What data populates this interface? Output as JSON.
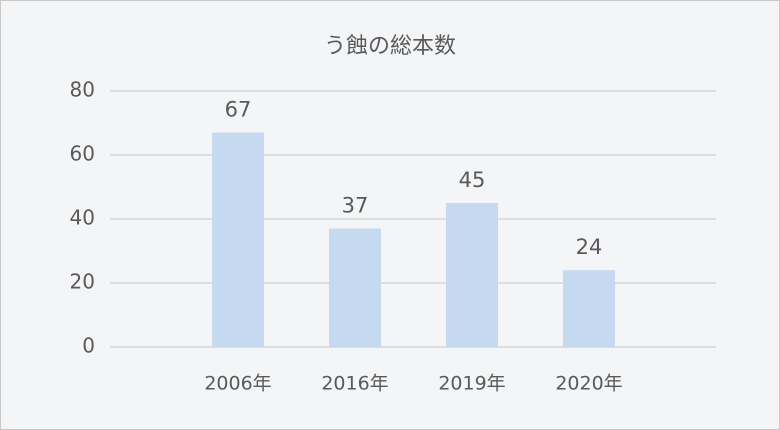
{
  "chart_data": {
    "type": "bar",
    "title": "う蝕の総本数",
    "categories": [
      "2006年",
      "2016年",
      "2019年",
      "2020年"
    ],
    "values": [
      67,
      37,
      45,
      24
    ],
    "color": "#c5d9f0",
    "ylim": [
      0,
      80
    ],
    "yticks": [
      0,
      20,
      40,
      60,
      80
    ],
    "grid": true
  }
}
